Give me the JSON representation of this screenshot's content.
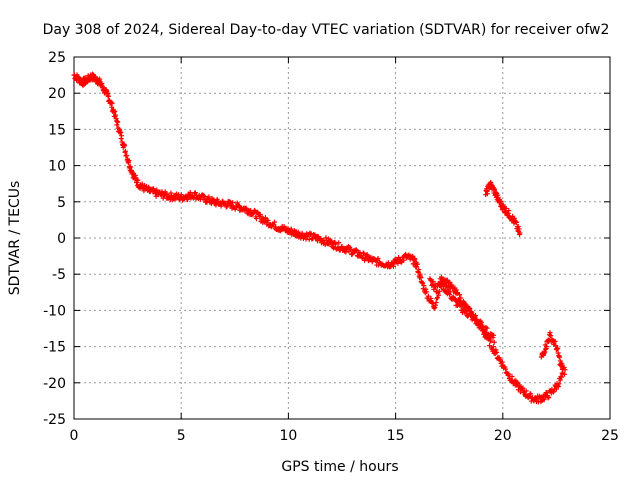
{
  "chart_data": {
    "type": "scatter",
    "title": "Day 308 of 2024, Sidereal Day-to-day VTEC variation (SDTVAR) for receiver ofw2",
    "xlabel": "GPS time / hours",
    "ylabel": "SDTVAR / TECUs",
    "xlim": [
      0,
      25
    ],
    "ylim": [
      -25,
      25
    ],
    "xticks": [
      0,
      5,
      10,
      15,
      20,
      25
    ],
    "yticks": [
      -25,
      -20,
      -15,
      -10,
      -5,
      0,
      5,
      10,
      15,
      20,
      25
    ],
    "grid": true,
    "marker": "+",
    "color": "#ff0000",
    "series": [
      {
        "name": "main-trace",
        "x": [
          0.0,
          0.2,
          0.4,
          0.6,
          0.8,
          1.0,
          1.2,
          1.4,
          1.6,
          1.8,
          2.0,
          2.2,
          2.4,
          2.6,
          2.8,
          3.0,
          3.2,
          3.5,
          3.8,
          4.1,
          4.4,
          4.7,
          5.0,
          5.3,
          5.6,
          5.9,
          6.2,
          6.5,
          6.8,
          7.1,
          7.4,
          7.7,
          8.0,
          8.3,
          8.6,
          8.9,
          9.2,
          9.5,
          9.8,
          10.1,
          10.4,
          10.7,
          11.0,
          11.3,
          11.6,
          11.9,
          12.2,
          12.5,
          12.8,
          13.1,
          13.4,
          13.7,
          14.0,
          14.3,
          14.6,
          14.9,
          15.2,
          15.5,
          15.8,
          16.0,
          16.2,
          16.5,
          16.8,
          17.1,
          17.4,
          17.7,
          18.0,
          18.3,
          18.6,
          18.9,
          19.2,
          19.5,
          19.8,
          20.1,
          20.4,
          20.7,
          21.0,
          21.3,
          21.6,
          21.9,
          22.2,
          22.5,
          22.8
        ],
        "y": [
          22.5,
          22.0,
          21.5,
          21.8,
          22.3,
          22.0,
          21.5,
          20.5,
          19.5,
          18.0,
          16.0,
          14.0,
          12.0,
          10.0,
          8.5,
          7.5,
          7.0,
          6.5,
          6.2,
          6.0,
          5.8,
          5.7,
          5.6,
          5.8,
          6.0,
          5.6,
          5.3,
          5.0,
          4.8,
          4.7,
          4.5,
          4.3,
          4.0,
          3.6,
          3.0,
          2.4,
          2.0,
          1.5,
          1.2,
          0.9,
          0.6,
          0.4,
          0.2,
          0.0,
          -0.3,
          -0.6,
          -1.0,
          -1.3,
          -1.6,
          -2.0,
          -2.4,
          -2.8,
          -3.2,
          -3.4,
          -3.6,
          -3.5,
          -3.0,
          -2.6,
          -3.0,
          -3.8,
          -6.0,
          -8.0,
          -9.5,
          -6.5,
          -7.2,
          -8.5,
          -9.5,
          -10.3,
          -11.0,
          -12.0,
          -13.5,
          -15.0,
          -16.5,
          -18.0,
          -19.5,
          -20.5,
          -21.3,
          -22.0,
          -22.3,
          -22.0,
          -21.5,
          -20.5,
          -19.0
        ]
      },
      {
        "name": "upper-branch",
        "x": [
          16.6,
          16.9,
          17.2,
          17.5,
          17.8,
          18.1,
          18.4,
          18.7,
          19.0,
          19.3,
          19.6
        ],
        "y": [
          -6.0,
          -7.0,
          -5.5,
          -6.5,
          -7.5,
          -8.8,
          -10.0,
          -11.0,
          -12.0,
          -13.0,
          -14.0
        ]
      },
      {
        "name": "secondary-trace",
        "x": [
          19.2,
          19.4,
          19.6,
          19.8,
          20.0,
          20.2,
          20.4,
          20.6,
          20.8
        ],
        "y": [
          6.0,
          7.5,
          6.5,
          5.2,
          4.3,
          3.6,
          2.9,
          2.0,
          0.5
        ]
      },
      {
        "name": "tail-segments",
        "x": [
          21.8,
          22.0,
          22.2,
          22.5,
          22.7,
          22.9
        ],
        "y": [
          -16.5,
          -15.0,
          -13.5,
          -15.0,
          -17.5,
          -18.5
        ]
      }
    ]
  }
}
